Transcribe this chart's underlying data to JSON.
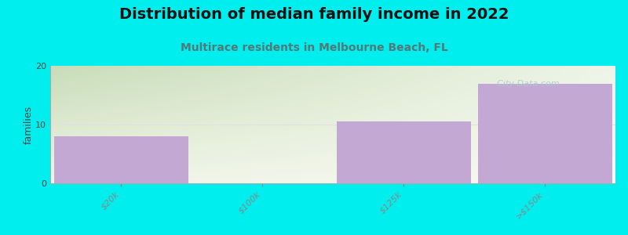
{
  "title": "Distribution of median family income in 2022",
  "subtitle": "Multirace residents in Melbourne Beach, FL",
  "categories": [
    "$20k",
    "$100k",
    "$125k",
    ">$150k"
  ],
  "values": [
    8,
    0,
    10.5,
    17
  ],
  "bar_color": "#c4a8d4",
  "bar_edgecolor": "#c4a8d4",
  "background_color": "#00eeee",
  "plot_bg_color_topleft": "#c8ddb8",
  "plot_bg_color_topright": "#eef5e8",
  "plot_bg_color_bottomright": "#f5f5ec",
  "ylabel": "families",
  "ylim": [
    0,
    20
  ],
  "yticks": [
    0,
    10,
    20
  ],
  "title_fontsize": 14,
  "subtitle_fontsize": 10,
  "subtitle_color": "#557777",
  "ylabel_fontsize": 9,
  "tick_fontsize": 8,
  "watermark": "  City-Data.com",
  "watermark_color": "#aacccc",
  "grid_color": "#e0e0e0",
  "spine_color": "#aaaaaa"
}
